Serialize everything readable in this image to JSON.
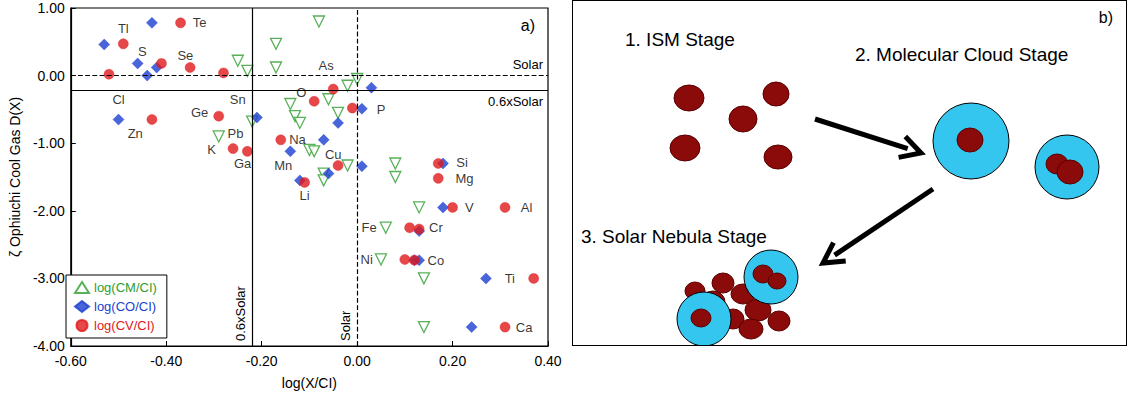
{
  "chart_data": {
    "type": "scatter",
    "label": "a)",
    "x_label": "log(X/CI)",
    "y_label": "ζ Ophiuchi Cool Gas D(X)",
    "xlim": [
      -0.6,
      0.4
    ],
    "xticks": [
      {
        "value": -0.6,
        "label": "-0.60"
      },
      {
        "value": -0.4,
        "label": "-0.40"
      },
      {
        "value": -0.2,
        "label": "-0.20"
      },
      {
        "value": 0,
        "label": "0.00"
      },
      {
        "value": 0.2,
        "label": "0.20"
      },
      {
        "value": 0.4,
        "label": "0.40"
      }
    ],
    "ylim": [
      -4,
      1
    ],
    "yticks": [
      {
        "value": -4,
        "label": "-4.00"
      },
      {
        "value": -3,
        "label": "-3.00"
      },
      {
        "value": -2,
        "label": "-2.00"
      },
      {
        "value": -1,
        "label": "-1.00"
      },
      {
        "value": 0,
        "label": "0.00"
      },
      {
        "value": 1,
        "label": "1.00"
      }
    ],
    "grid": false,
    "legend": "lower left",
    "series": [
      {
        "name": "log(CM/CI)",
        "color": "#2e9e2e",
        "marker": "triangle-down-open",
        "x": [
          -0.08,
          -0.17,
          -0.25,
          -0.17,
          -0.23,
          -0.02,
          0.0,
          -0.06,
          -0.14,
          -0.13,
          -0.12,
          -0.04,
          -0.29,
          -0.22,
          -0.1,
          -0.09,
          -0.07,
          -0.07,
          -0.02,
          0.08,
          0.08,
          0.13,
          0.06,
          0.05,
          0.14,
          0.14
        ],
        "y": [
          0.8,
          0.47,
          0.22,
          0.12,
          0.07,
          -0.15,
          -0.05,
          -0.35,
          -0.42,
          -0.6,
          -0.7,
          -0.55,
          -0.9,
          -0.68,
          -1.1,
          -1.12,
          -1.45,
          -1.55,
          -1.33,
          -1.3,
          -1.5,
          -1.95,
          -2.25,
          -2.72,
          -3.0,
          -3.72
        ]
      },
      {
        "name": "log(CO/CI)",
        "color": "#1c3fd1",
        "marker": "diamond",
        "x": [
          -0.53,
          -0.43,
          -0.46,
          -0.44,
          -0.42,
          -0.5,
          -0.21,
          -0.14,
          -0.07,
          -0.04,
          0.03,
          0.01,
          0.01,
          -0.12,
          -0.06,
          0.18,
          0.18,
          0.13,
          0.13,
          0.12,
          0.27,
          0.24
        ],
        "y": [
          0.46,
          0.78,
          0.18,
          0.0,
          0.12,
          -0.65,
          -0.62,
          -1.12,
          -0.95,
          -0.7,
          -0.18,
          -0.49,
          -1.34,
          -1.55,
          -1.45,
          -1.3,
          -1.95,
          -2.3,
          -2.73,
          -2.73,
          -3.0,
          -3.72
        ]
      },
      {
        "name": "log(CV/CI)",
        "color": "#e0191b",
        "marker": "circle",
        "x": [
          -0.37,
          -0.49,
          -0.41,
          -0.35,
          -0.52,
          -0.28,
          -0.43,
          -0.29,
          -0.26,
          -0.23,
          -0.16,
          -0.09,
          -0.05,
          -0.01,
          -0.04,
          -0.11,
          0.17,
          0.17,
          0.2,
          0.31,
          0.13,
          0.11,
          0.12,
          0.1,
          0.37,
          0.31
        ],
        "y": [
          0.78,
          0.47,
          0.18,
          0.12,
          0.02,
          0.04,
          -0.65,
          -0.6,
          -1.08,
          -1.12,
          -0.95,
          -0.38,
          -0.2,
          -0.48,
          -1.33,
          -1.58,
          -1.3,
          -1.52,
          -1.95,
          -1.95,
          -2.27,
          -2.25,
          -2.73,
          -2.72,
          -3.0,
          -3.72
        ]
      }
    ],
    "reference_lines": [
      {
        "axis": "x",
        "value": -0.22,
        "label": "0.6xSolar",
        "line_style": "solid"
      },
      {
        "axis": "x",
        "value": 0,
        "label": "Solar",
        "line_style": "dashed"
      },
      {
        "axis": "y",
        "value": -0.22,
        "label": "0.6xSolar",
        "line_style": "solid"
      },
      {
        "axis": "y",
        "value": 0,
        "label": "Solar",
        "line_style": "dashed"
      }
    ],
    "annotations": [
      {
        "text": "Tl",
        "x": -0.49,
        "y": 0.7
      },
      {
        "text": "Te",
        "x": -0.33,
        "y": 0.78
      },
      {
        "text": "S",
        "x": -0.45,
        "y": 0.35
      },
      {
        "text": "Se",
        "x": -0.36,
        "y": 0.29
      },
      {
        "text": "Cl",
        "x": -0.5,
        "y": -0.36
      },
      {
        "text": "Sn",
        "x": -0.25,
        "y": -0.36
      },
      {
        "text": "As",
        "x": -0.065,
        "y": 0.15
      },
      {
        "text": "O",
        "x": -0.117,
        "y": -0.25
      },
      {
        "text": "P",
        "x": 0.05,
        "y": -0.5
      },
      {
        "text": "Ge",
        "x": -0.33,
        "y": -0.55
      },
      {
        "text": "Zn",
        "x": -0.465,
        "y": -0.85
      },
      {
        "text": "Pb",
        "x": -0.255,
        "y": -0.85
      },
      {
        "text": "K",
        "x": -0.305,
        "y": -1.1
      },
      {
        "text": "Ga",
        "x": -0.24,
        "y": -1.3
      },
      {
        "text": "Na",
        "x": -0.125,
        "y": -0.95
      },
      {
        "text": "Mn",
        "x": -0.155,
        "y": -1.33
      },
      {
        "text": "Cu",
        "x": -0.05,
        "y": -1.17
      },
      {
        "text": "Li",
        "x": -0.11,
        "y": -1.78
      },
      {
        "text": "Si",
        "x": 0.22,
        "y": -1.28
      },
      {
        "text": "Mg",
        "x": 0.225,
        "y": -1.52
      },
      {
        "text": "V",
        "x": 0.235,
        "y": -1.95
      },
      {
        "text": "Al",
        "x": 0.355,
        "y": -1.95
      },
      {
        "text": "Fe",
        "x": 0.025,
        "y": -2.25
      },
      {
        "text": "Cr",
        "x": 0.165,
        "y": -2.25
      },
      {
        "text": "Ni",
        "x": 0.02,
        "y": -2.72
      },
      {
        "text": "Co",
        "x": 0.165,
        "y": -2.73
      },
      {
        "text": "Ti",
        "x": 0.32,
        "y": -3.0
      },
      {
        "text": "Ca",
        "x": 0.35,
        "y": -3.72
      }
    ]
  },
  "diagram": {
    "label": "b)",
    "stages": [
      "1. ISM Stage",
      "2. Molecular Cloud Stage",
      "3. Solar Nebula Stage"
    ]
  }
}
